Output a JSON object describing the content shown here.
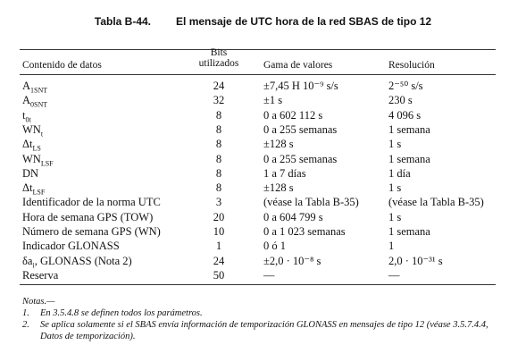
{
  "header": {
    "number": "Tabla B-44.",
    "title": "El mensaje de UTC hora de la red SBAS de tipo 12"
  },
  "table": {
    "columns": [
      "Contenido de datos",
      "Bits utilizados",
      "Gama de valores",
      "Resolución"
    ],
    "rows": [
      {
        "param": "A",
        "sub": "1SNT",
        "bits": 24,
        "range": "±7,45 H 10⁻⁹ s/s",
        "resolution": "2⁻⁵⁰ s/s"
      },
      {
        "param": "A",
        "sub": "0SNT",
        "bits": 32,
        "range": "±1 s",
        "resolution": "230 s"
      },
      {
        "param": "t",
        "sub": "0t",
        "bits": 8,
        "range": "0 a 602 112 s",
        "resolution": "4 096 s"
      },
      {
        "param": "WN",
        "sub": "t",
        "bits": 8,
        "range": "0 a 255 semanas",
        "resolution": "1 semana"
      },
      {
        "param": "Δt",
        "sub": "LS",
        "bits": 8,
        "range": "±128 s",
        "resolution": "1 s"
      },
      {
        "param": "WN",
        "sub": "LSF",
        "bits": 8,
        "range": "0 a 255 semanas",
        "resolution": "1 semana"
      },
      {
        "param": "DN",
        "bits": 8,
        "range": "1 a 7 días",
        "resolution": "1 día"
      },
      {
        "param": "Δt",
        "sub": "LSF",
        "bits": 8,
        "range": "±128 s",
        "resolution": "1 s"
      },
      {
        "param": "Identificador de la norma UTC",
        "bits": 3,
        "range": "(véase la Tabla B-35)",
        "resolution": "(véase la Tabla B-35)"
      },
      {
        "param": "Hora de semana GPS (TOW)",
        "bits": 20,
        "range": "0 a 604 799 s",
        "resolution": "1 s"
      },
      {
        "param": "Número de semana GPS (WN)",
        "bits": 10,
        "range": "0 a 1 023 semanas",
        "resolution": "1 semana"
      },
      {
        "param": "Indicador GLONASS",
        "bits": 1,
        "range": "0 ó 1",
        "resolution": "1"
      },
      {
        "param": "δa",
        "sub": "i",
        "param_suffix": ", GLONASS (Nota 2)",
        "bits": 24,
        "range": "±2,0 · 10⁻⁸ s",
        "resolution": "2,0 · 10⁻³¹ s"
      },
      {
        "param": "Reserva",
        "bits": 50,
        "range": "—",
        "resolution": "—"
      }
    ]
  },
  "notes": {
    "heading": "Notas.—",
    "items": [
      {
        "number": "1.",
        "text": "En 3.5.4.8 se definen todos los parámetros."
      },
      {
        "number": "2.",
        "text": "Se aplica solamente si el SBAS envía información de temporización GLONASS en mensajes de tipo 12 (véase 3.5.7.4.4, Datos de temporización)."
      }
    ]
  }
}
